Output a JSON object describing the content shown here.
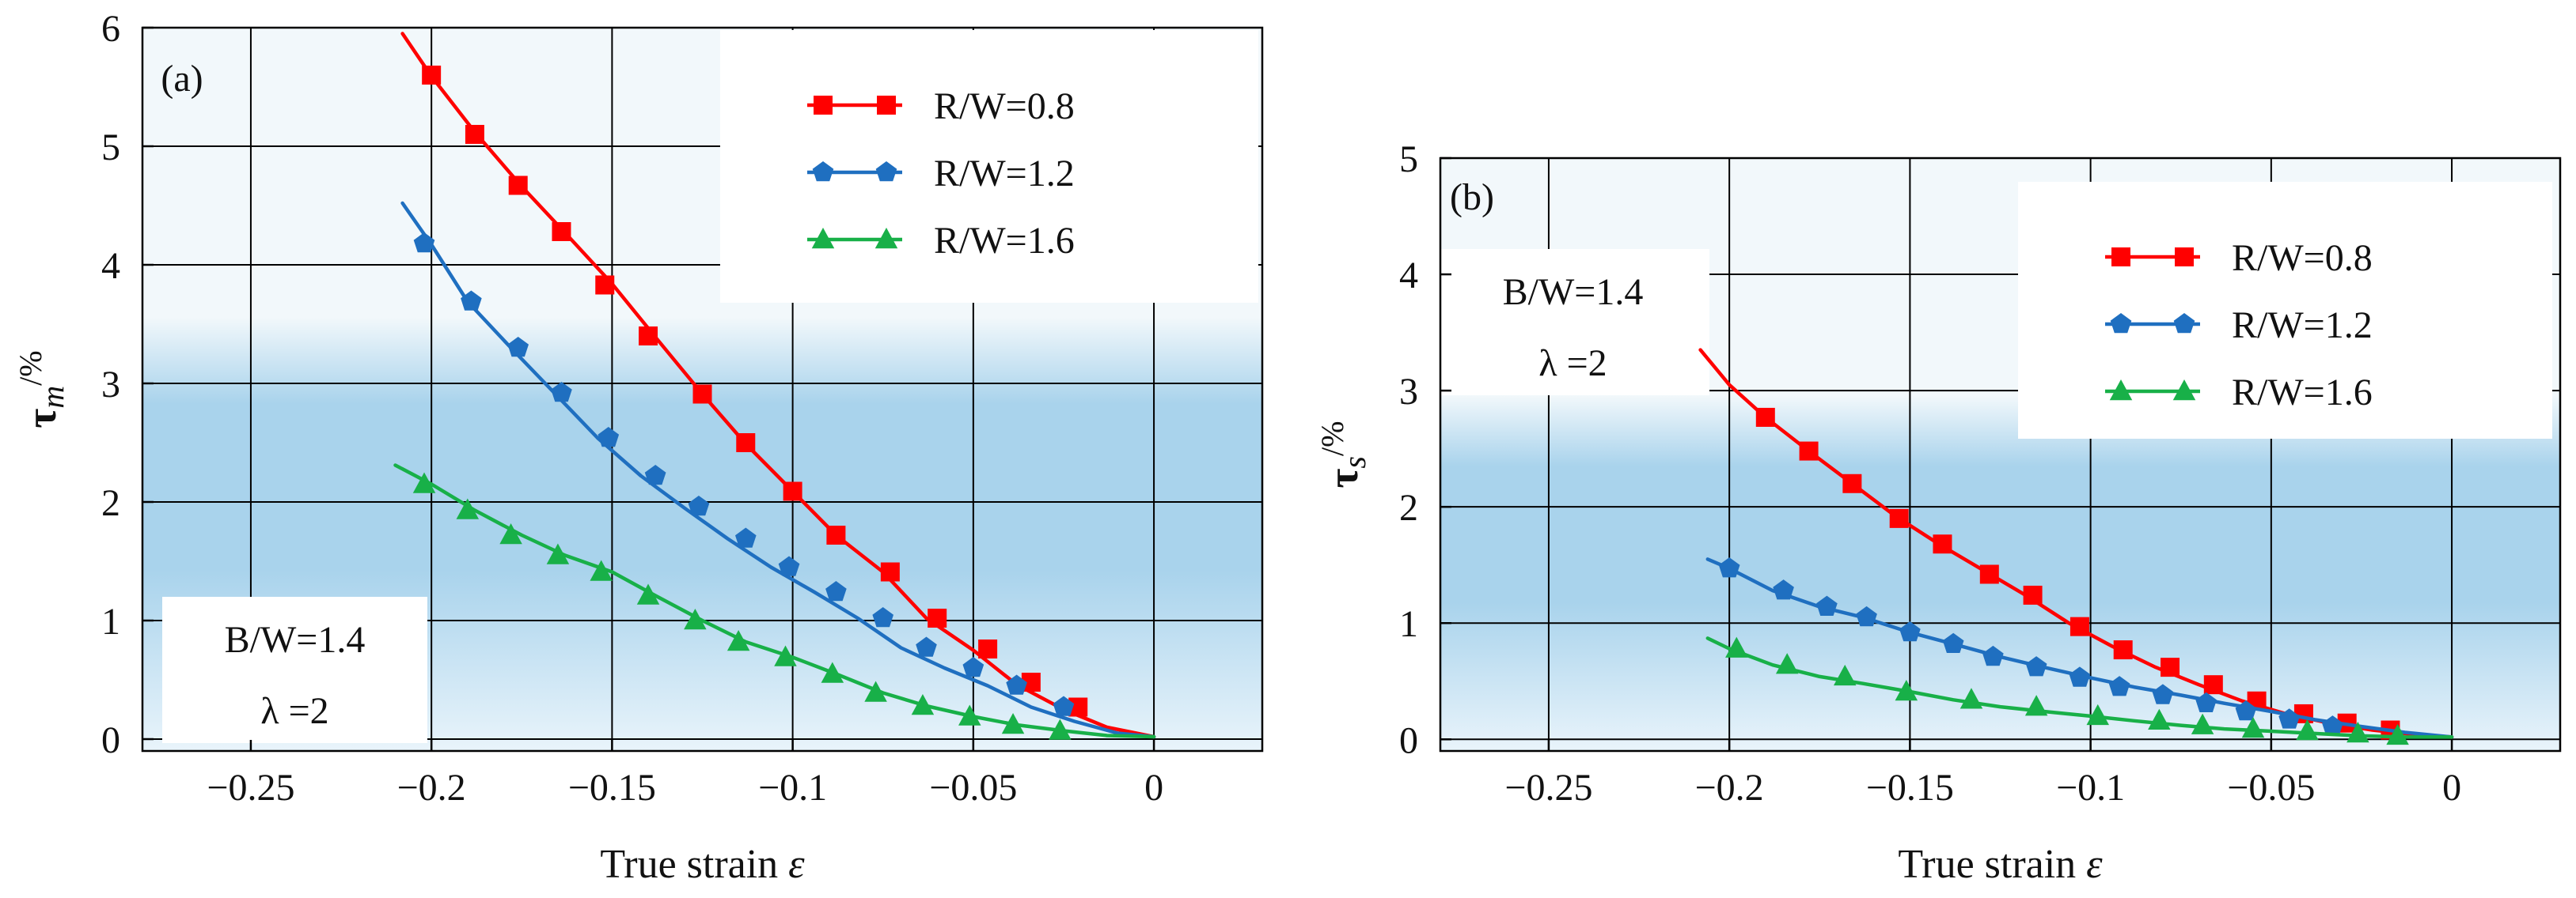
{
  "colors": {
    "red": "#ff0000",
    "blue": "#1f6fc0",
    "green": "#18b048",
    "grid": "#000000",
    "bg_top": "#f2f8fb",
    "bg_mid": "#a9d3ec",
    "bg_bottom": "#e9f4fb"
  },
  "chart_data": [
    {
      "type": "line",
      "panel_label": "(a)",
      "title": "",
      "xlabel": "True strain",
      "xlabel_symbol": "ε",
      "ylabel_main": "τ",
      "ylabel_sub": "m",
      "ylabel_unit": "/%",
      "xlim": [
        -0.28,
        0.03
      ],
      "ylim": [
        -0.1,
        6.0
      ],
      "xticks": [
        -0.25,
        -0.2,
        -0.15,
        -0.1,
        -0.05,
        0
      ],
      "xtick_labels": [
        "−0.25",
        "−0.2",
        "−0.15",
        "−0.1",
        "−0.05",
        "0"
      ],
      "yticks": [
        0,
        1,
        2,
        3,
        4,
        5,
        6
      ],
      "ytick_labels": [
        "0",
        "1",
        "2",
        "3",
        "4",
        "5",
        "6"
      ],
      "legend_position": "top-right",
      "annotation": {
        "line1": "B/W=1.4",
        "line2": "λ =2",
        "position": "bottom-left"
      },
      "series": [
        {
          "name": "R/W=0.8",
          "color": "#ff0000",
          "marker": "square",
          "curve_x": [
            -0.208,
            -0.2,
            -0.188,
            -0.175,
            -0.163,
            -0.15,
            -0.138,
            -0.125,
            -0.113,
            -0.1,
            -0.088,
            -0.075,
            -0.063,
            -0.05,
            -0.038,
            -0.025,
            -0.013,
            0
          ],
          "curve_y": [
            5.95,
            5.59,
            5.12,
            4.66,
            4.27,
            3.84,
            3.39,
            2.91,
            2.49,
            2.09,
            1.72,
            1.41,
            1.02,
            0.75,
            0.46,
            0.25,
            0.1,
            0.02
          ],
          "x": [
            -0.2,
            -0.188,
            -0.176,
            -0.164,
            -0.152,
            -0.14,
            -0.125,
            -0.113,
            -0.1,
            -0.088,
            -0.073,
            -0.06,
            -0.046,
            -0.034,
            -0.021
          ],
          "y": [
            5.6,
            5.1,
            4.67,
            4.28,
            3.83,
            3.4,
            2.91,
            2.5,
            2.09,
            1.72,
            1.41,
            1.02,
            0.76,
            0.48,
            0.27
          ]
        },
        {
          "name": "R/W=1.2",
          "color": "#1f6fc0",
          "marker": "pentagon",
          "curve_x": [
            -0.208,
            -0.2,
            -0.19,
            -0.178,
            -0.166,
            -0.154,
            -0.142,
            -0.13,
            -0.118,
            -0.106,
            -0.094,
            -0.082,
            -0.07,
            -0.058,
            -0.046,
            -0.034,
            -0.022,
            -0.01,
            0
          ],
          "curve_y": [
            4.52,
            4.17,
            3.69,
            3.3,
            2.92,
            2.54,
            2.22,
            1.95,
            1.69,
            1.45,
            1.24,
            1.02,
            0.77,
            0.6,
            0.45,
            0.27,
            0.15,
            0.05,
            0.02
          ],
          "x": [
            -0.202,
            -0.189,
            -0.176,
            -0.164,
            -0.151,
            -0.138,
            -0.126,
            -0.113,
            -0.101,
            -0.088,
            -0.075,
            -0.063,
            -0.05,
            -0.038,
            -0.025
          ],
          "y": [
            4.18,
            3.69,
            3.3,
            2.92,
            2.54,
            2.22,
            1.96,
            1.69,
            1.45,
            1.24,
            1.02,
            0.77,
            0.6,
            0.45,
            0.27
          ]
        },
        {
          "name": "R/W=1.6",
          "color": "#18b048",
          "marker": "triangle",
          "curve_x": [
            -0.21,
            -0.2,
            -0.188,
            -0.175,
            -0.163,
            -0.15,
            -0.138,
            -0.125,
            -0.113,
            -0.1,
            -0.088,
            -0.075,
            -0.063,
            -0.05,
            -0.038,
            -0.025,
            -0.013,
            0
          ],
          "curve_y": [
            2.31,
            2.15,
            1.93,
            1.72,
            1.55,
            1.41,
            1.21,
            1.0,
            0.82,
            0.69,
            0.55,
            0.39,
            0.28,
            0.19,
            0.12,
            0.07,
            0.03,
            0.02
          ],
          "x": [
            -0.202,
            -0.19,
            -0.178,
            -0.165,
            -0.153,
            -0.14,
            -0.127,
            -0.115,
            -0.102,
            -0.089,
            -0.077,
            -0.064,
            -0.051,
            -0.039,
            -0.026
          ],
          "y": [
            2.15,
            1.93,
            1.72,
            1.55,
            1.41,
            1.21,
            1.0,
            0.82,
            0.69,
            0.55,
            0.39,
            0.28,
            0.19,
            0.12,
            0.07
          ]
        }
      ]
    },
    {
      "type": "line",
      "panel_label": "(b)",
      "title": "",
      "xlabel": "True strain",
      "xlabel_symbol": "ε",
      "ylabel_main": "τ",
      "ylabel_sub": "s",
      "ylabel_unit": "/%",
      "xlim": [
        -0.28,
        0.03
      ],
      "ylim": [
        -0.1,
        5.0
      ],
      "xticks": [
        -0.25,
        -0.2,
        -0.15,
        -0.1,
        -0.05,
        0
      ],
      "xtick_labels": [
        "−0.25",
        "−0.2",
        "−0.15",
        "−0.1",
        "−0.05",
        "0"
      ],
      "yticks": [
        0,
        1,
        2,
        3,
        4,
        5
      ],
      "ytick_labels": [
        "0",
        "1",
        "2",
        "3",
        "4",
        "5"
      ],
      "legend_position": "top-right",
      "annotation": {
        "line1": "B/W=1.4",
        "line2": "λ =2",
        "position": "top-left"
      },
      "series": [
        {
          "name": "R/W=0.8",
          "color": "#ff0000",
          "marker": "square",
          "curve_x": [
            -0.208,
            -0.2,
            -0.19,
            -0.178,
            -0.166,
            -0.154,
            -0.142,
            -0.13,
            -0.118,
            -0.106,
            -0.094,
            -0.082,
            -0.07,
            -0.058,
            -0.046,
            -0.034,
            -0.022,
            -0.01,
            0
          ],
          "curve_y": [
            3.35,
            3.05,
            2.77,
            2.48,
            2.2,
            1.92,
            1.68,
            1.46,
            1.24,
            1.0,
            0.8,
            0.62,
            0.47,
            0.33,
            0.22,
            0.14,
            0.08,
            0.04,
            0.02
          ],
          "x": [
            -0.19,
            -0.178,
            -0.166,
            -0.153,
            -0.141,
            -0.128,
            -0.116,
            -0.103,
            -0.091,
            -0.078,
            -0.066,
            -0.054,
            -0.041,
            -0.029,
            -0.017
          ],
          "y": [
            2.77,
            2.48,
            2.2,
            1.9,
            1.68,
            1.42,
            1.24,
            0.97,
            0.77,
            0.62,
            0.47,
            0.33,
            0.22,
            0.14,
            0.08
          ]
        },
        {
          "name": "R/W=1.2",
          "color": "#1f6fc0",
          "marker": "pentagon",
          "curve_x": [
            -0.206,
            -0.2,
            -0.188,
            -0.175,
            -0.163,
            -0.15,
            -0.138,
            -0.125,
            -0.113,
            -0.1,
            -0.088,
            -0.075,
            -0.063,
            -0.05,
            -0.038,
            -0.025,
            -0.013,
            0
          ],
          "curve_y": [
            1.55,
            1.47,
            1.28,
            1.14,
            1.05,
            0.92,
            0.82,
            0.71,
            0.62,
            0.53,
            0.45,
            0.38,
            0.31,
            0.24,
            0.17,
            0.11,
            0.06,
            0.02
          ],
          "x": [
            -0.2,
            -0.185,
            -0.173,
            -0.162,
            -0.15,
            -0.138,
            -0.127,
            -0.115,
            -0.103,
            -0.092,
            -0.08,
            -0.068,
            -0.057,
            -0.045,
            -0.033
          ],
          "y": [
            1.47,
            1.28,
            1.14,
            1.05,
            0.92,
            0.82,
            0.71,
            0.62,
            0.53,
            0.45,
            0.38,
            0.31,
            0.24,
            0.17,
            0.11
          ]
        },
        {
          "name": "R/W=1.6",
          "color": "#18b048",
          "marker": "triangle",
          "curve_x": [
            -0.206,
            -0.2,
            -0.188,
            -0.175,
            -0.163,
            -0.15,
            -0.138,
            -0.125,
            -0.113,
            -0.1,
            -0.088,
            -0.075,
            -0.063,
            -0.05,
            -0.038,
            -0.025,
            -0.013,
            0
          ],
          "curve_y": [
            0.87,
            0.78,
            0.64,
            0.54,
            0.48,
            0.41,
            0.34,
            0.28,
            0.24,
            0.2,
            0.16,
            0.12,
            0.09,
            0.07,
            0.05,
            0.03,
            0.02,
            0.02
          ],
          "x": [
            -0.198,
            -0.184,
            -0.168,
            -0.151,
            -0.133,
            -0.115,
            -0.098,
            -0.081,
            -0.069,
            -0.055,
            -0.04,
            -0.026,
            -0.015
          ],
          "y": [
            0.78,
            0.64,
            0.54,
            0.41,
            0.34,
            0.28,
            0.2,
            0.16,
            0.12,
            0.09,
            0.07,
            0.05,
            0.03
          ]
        }
      ]
    }
  ]
}
